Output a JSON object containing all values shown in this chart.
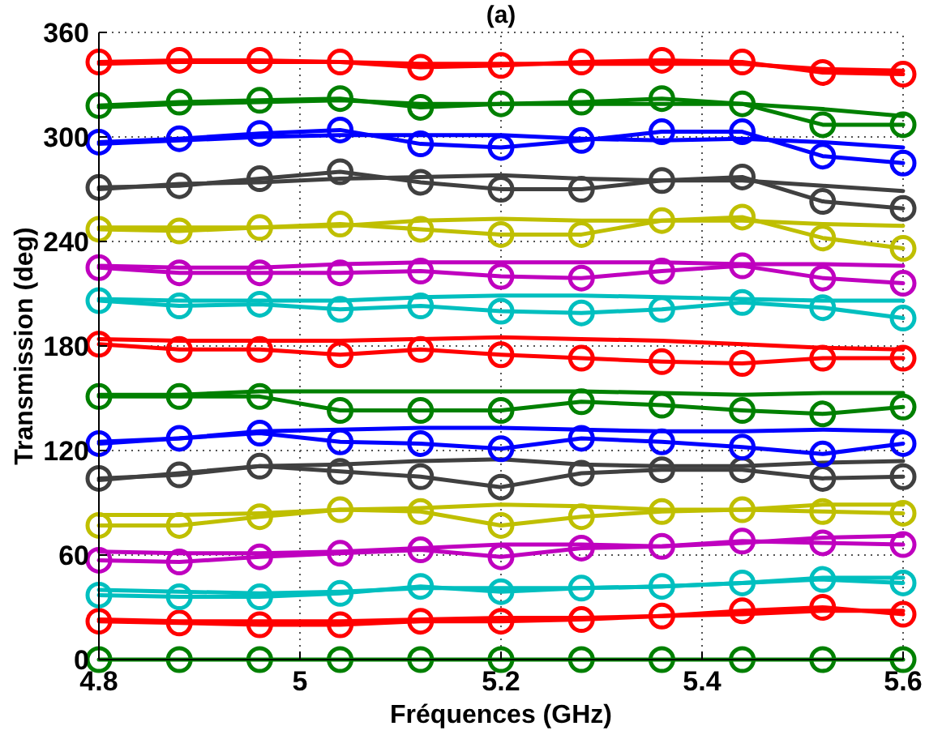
{
  "chart_data": {
    "type": "line",
    "title": "(a)",
    "xlabel": "Fréquences (GHz)",
    "ylabel": "Transmission (deg)",
    "x": [
      4.8,
      4.88,
      4.96,
      5.04,
      5.12,
      5.2,
      5.28,
      5.36,
      5.44,
      5.52,
      5.6
    ],
    "xlim": [
      4.8,
      5.6
    ],
    "ylim": [
      0,
      360
    ],
    "xticks": [
      4.8,
      5,
      5.2,
      5.4,
      5.6
    ],
    "yticks": [
      0,
      60,
      120,
      180,
      240,
      300,
      360
    ],
    "grid": true,
    "series": [
      {
        "color": "#008000",
        "marker": "circle",
        "values": [
          0,
          0,
          0,
          0,
          0,
          0,
          0,
          0,
          0,
          0,
          0
        ]
      },
      {
        "color": "#ff0000",
        "marker": "circle",
        "values": [
          22,
          21,
          20,
          20,
          22,
          22,
          23,
          25,
          28,
          30,
          26
        ]
      },
      {
        "color": "#ff0000",
        "marker": "none",
        "values": [
          23,
          22,
          22,
          22,
          23,
          24,
          24,
          25,
          26,
          28,
          28
        ]
      },
      {
        "color": "#00bfbf",
        "marker": "circle",
        "values": [
          37,
          36,
          36,
          38,
          42,
          39,
          41,
          42,
          44,
          46,
          44
        ]
      },
      {
        "color": "#00bfbf",
        "marker": "none",
        "values": [
          40,
          39,
          38,
          39,
          41,
          41,
          41,
          42,
          44,
          47,
          47
        ]
      },
      {
        "color": "#bf00bf",
        "marker": "circle",
        "values": [
          57,
          56,
          59,
          61,
          63,
          59,
          64,
          65,
          68,
          67,
          66
        ]
      },
      {
        "color": "#bf00bf",
        "marker": "none",
        "values": [
          62,
          61,
          61,
          62,
          64,
          66,
          66,
          65,
          67,
          70,
          71
        ]
      },
      {
        "color": "#bfbf00",
        "marker": "circle",
        "values": [
          77,
          77,
          82,
          86,
          85,
          77,
          82,
          85,
          86,
          85,
          84
        ]
      },
      {
        "color": "#bfbf00",
        "marker": "none",
        "values": [
          83,
          83,
          84,
          86,
          87,
          89,
          88,
          86,
          86,
          89,
          89
        ]
      },
      {
        "color": "#404040",
        "marker": "circle",
        "values": [
          104,
          106,
          111,
          108,
          105,
          99,
          107,
          109,
          109,
          104,
          105
        ]
      },
      {
        "color": "#404040",
        "marker": "none",
        "values": [
          103,
          107,
          111,
          112,
          114,
          115,
          112,
          111,
          111,
          113,
          114
        ]
      },
      {
        "color": "#0000ff",
        "marker": "circle",
        "values": [
          124,
          127,
          130,
          125,
          124,
          121,
          127,
          125,
          122,
          118,
          124
        ]
      },
      {
        "color": "#0000ff",
        "marker": "none",
        "values": [
          125,
          127,
          131,
          132,
          133,
          133,
          132,
          131,
          131,
          132,
          131
        ]
      },
      {
        "color": "#008000",
        "marker": "circle",
        "values": [
          151,
          151,
          151,
          143,
          143,
          143,
          148,
          146,
          143,
          141,
          145
        ]
      },
      {
        "color": "#008000",
        "marker": "none",
        "values": [
          152,
          152,
          154,
          154,
          154,
          154,
          154,
          153,
          152,
          153,
          153
        ]
      },
      {
        "color": "#ff0000",
        "marker": "circle",
        "values": [
          181,
          178,
          178,
          175,
          178,
          175,
          173,
          171,
          170,
          173,
          173
        ]
      },
      {
        "color": "#ff0000",
        "marker": "none",
        "values": [
          184,
          183,
          183,
          183,
          184,
          185,
          184,
          183,
          181,
          179,
          178
        ]
      },
      {
        "color": "#00bfbf",
        "marker": "circle",
        "values": [
          206,
          203,
          204,
          201,
          203,
          200,
          199,
          201,
          205,
          202,
          196
        ]
      },
      {
        "color": "#00bfbf",
        "marker": "none",
        "values": [
          207,
          206,
          206,
          206,
          208,
          209,
          209,
          208,
          207,
          206,
          206
        ]
      },
      {
        "color": "#bf00bf",
        "marker": "circle",
        "values": [
          225,
          222,
          222,
          222,
          223,
          220,
          219,
          223,
          226,
          219,
          216
        ]
      },
      {
        "color": "#bf00bf",
        "marker": "none",
        "values": [
          226,
          225,
          225,
          227,
          228,
          228,
          228,
          228,
          227,
          227,
          226
        ]
      },
      {
        "color": "#bfbf00",
        "marker": "circle",
        "values": [
          247,
          246,
          248,
          250,
          247,
          244,
          244,
          252,
          254,
          242,
          236
        ]
      },
      {
        "color": "#bfbf00",
        "marker": "none",
        "values": [
          248,
          248,
          248,
          249,
          252,
          253,
          252,
          252,
          252,
          250,
          249
        ]
      },
      {
        "color": "#404040",
        "marker": "circle",
        "values": [
          271,
          272,
          276,
          280,
          274,
          270,
          270,
          275,
          277,
          263,
          259
        ]
      },
      {
        "color": "#404040",
        "marker": "none",
        "values": [
          270,
          273,
          274,
          276,
          277,
          278,
          276,
          275,
          275,
          272,
          269
        ]
      },
      {
        "color": "#0000ff",
        "marker": "circle",
        "values": [
          297,
          299,
          302,
          304,
          296,
          294,
          298,
          303,
          303,
          289,
          285
        ]
      },
      {
        "color": "#0000ff",
        "marker": "none",
        "values": [
          296,
          298,
          300,
          301,
          301,
          301,
          299,
          298,
          299,
          297,
          294
        ]
      },
      {
        "color": "#008000",
        "marker": "circle",
        "values": [
          318,
          320,
          321,
          322,
          317,
          319,
          320,
          322,
          319,
          307,
          307
        ]
      },
      {
        "color": "#008000",
        "marker": "none",
        "values": [
          317,
          319,
          320,
          321,
          319,
          319,
          319,
          319,
          319,
          316,
          312
        ]
      },
      {
        "color": "#ff0000",
        "marker": "circle",
        "values": [
          343,
          344,
          344,
          343,
          340,
          341,
          343,
          344,
          343,
          337,
          336
        ]
      },
      {
        "color": "#ff0000",
        "marker": "none",
        "values": [
          342,
          343,
          343,
          343,
          342,
          342,
          342,
          342,
          342,
          339,
          338
        ]
      }
    ]
  }
}
